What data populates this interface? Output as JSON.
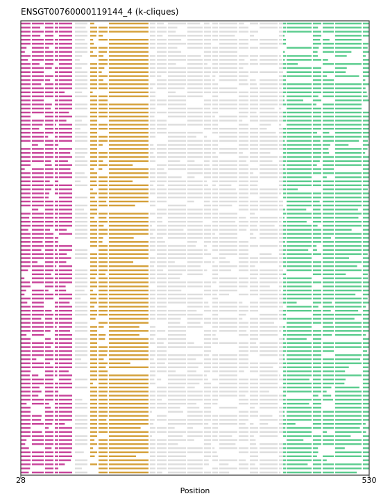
{
  "chart_data": {
    "type": "alignment-track",
    "title": "ENSGT00760000119144_4 (k-cliques)",
    "xlabel": "Position",
    "xlim": [
      28,
      530
    ],
    "x_ticks": [
      "28",
      "530"
    ],
    "grid": false,
    "legend": "none",
    "n_rows": 112,
    "block_colors": {
      "magenta": "#c8449a",
      "orange": "#d4a03a",
      "gray": "#dddddd",
      "green": "#5bcc8e"
    },
    "blocks": [
      {
        "color": "magenta",
        "start": 28,
        "end": 102
      },
      {
        "color": "gray",
        "start": 102,
        "end": 128
      },
      {
        "color": "orange",
        "start": 128,
        "end": 212
      },
      {
        "color": "gray",
        "start": 212,
        "end": 406
      },
      {
        "color": "green",
        "start": 406,
        "end": 530
      }
    ],
    "columns": [
      {
        "color": "magenta",
        "x": 28,
        "w": 14
      },
      {
        "color": "magenta",
        "x": 44,
        "w": 17
      },
      {
        "color": "magenta",
        "x": 63,
        "w": 12
      },
      {
        "color": "magenta",
        "x": 77,
        "w": 5
      },
      {
        "color": "magenta",
        "x": 83,
        "w": 19
      },
      {
        "color": "gray",
        "x": 106,
        "w": 18
      },
      {
        "color": "orange",
        "x": 128,
        "w": 10
      },
      {
        "color": "orange",
        "x": 140,
        "w": 13
      },
      {
        "color": "orange",
        "x": 155,
        "w": 57
      },
      {
        "color": "gray",
        "x": 214,
        "w": 8
      },
      {
        "color": "gray",
        "x": 224,
        "w": 14
      },
      {
        "color": "gray",
        "x": 240,
        "w": 26
      },
      {
        "color": "gray",
        "x": 268,
        "w": 22
      },
      {
        "color": "gray",
        "x": 292,
        "w": 10
      },
      {
        "color": "gray",
        "x": 304,
        "w": 8
      },
      {
        "color": "gray",
        "x": 314,
        "w": 26
      },
      {
        "color": "gray",
        "x": 342,
        "w": 14
      },
      {
        "color": "gray",
        "x": 358,
        "w": 12
      },
      {
        "color": "gray",
        "x": 372,
        "w": 26
      },
      {
        "color": "gray",
        "x": 400,
        "w": 6
      },
      {
        "color": "green",
        "x": 406,
        "w": 4
      },
      {
        "color": "green",
        "x": 411,
        "w": 36
      },
      {
        "color": "green",
        "x": 449,
        "w": 12
      },
      {
        "color": "green",
        "x": 463,
        "w": 16
      },
      {
        "color": "green",
        "x": 481,
        "w": 38
      },
      {
        "color": "green",
        "x": 521,
        "w": 9
      }
    ]
  }
}
